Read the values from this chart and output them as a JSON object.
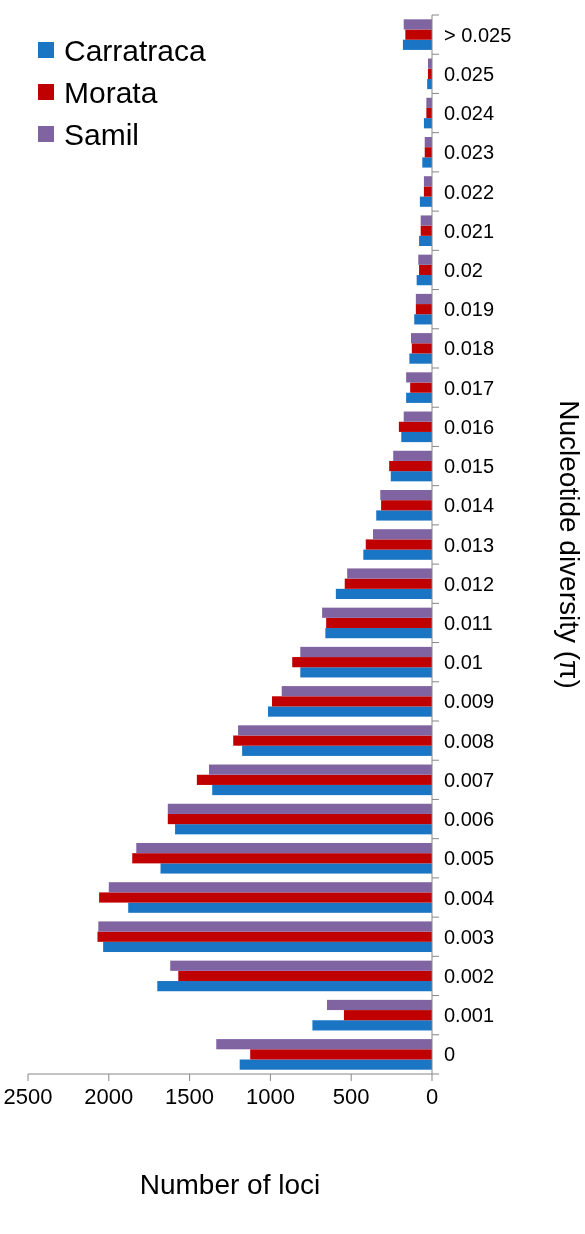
{
  "chart_data": {
    "type": "bar",
    "orientation": "horizontal",
    "xlabel": "Number of loci",
    "ylabel": "Nucleotide diversity (π)",
    "categories": [
      "> 0.025",
      "0.025",
      "0.024",
      "0.023",
      "0.022",
      "0.021",
      "0.02",
      "0.019",
      "0.018",
      "0.017",
      "0.016",
      "0.015",
      "0.014",
      "0.013",
      "0.012",
      "0.011",
      "0.01",
      "0.009",
      "0.008",
      "0.007",
      "0.006",
      "0.005",
      "0.004",
      "0.003",
      "0.002",
      "0.001",
      "0"
    ],
    "series": [
      {
        "name": "Carratraca",
        "color": "#1a75c4",
        "values": [
          180,
          30,
          50,
          60,
          75,
          80,
          95,
          110,
          140,
          160,
          190,
          255,
          345,
          425,
          595,
          660,
          815,
          1015,
          1175,
          1360,
          1590,
          1680,
          1880,
          2035,
          1700,
          740,
          1190
        ]
      },
      {
        "name": "Morata",
        "color": "#c00000",
        "values": [
          165,
          25,
          35,
          45,
          50,
          70,
          80,
          100,
          125,
          135,
          205,
          265,
          315,
          410,
          540,
          655,
          865,
          990,
          1230,
          1455,
          1635,
          1855,
          2060,
          2070,
          1570,
          545,
          1125
        ]
      },
      {
        "name": "Samil",
        "color": "#8064a2",
        "values": [
          175,
          25,
          35,
          45,
          50,
          70,
          85,
          100,
          130,
          160,
          175,
          240,
          320,
          365,
          525,
          680,
          815,
          930,
          1200,
          1380,
          1635,
          1830,
          2000,
          2065,
          1620,
          650,
          1335
        ]
      }
    ],
    "xlim": [
      2500,
      0
    ],
    "xticks": [
      2500,
      2000,
      1500,
      1000,
      500,
      0
    ],
    "legend": "top left"
  }
}
